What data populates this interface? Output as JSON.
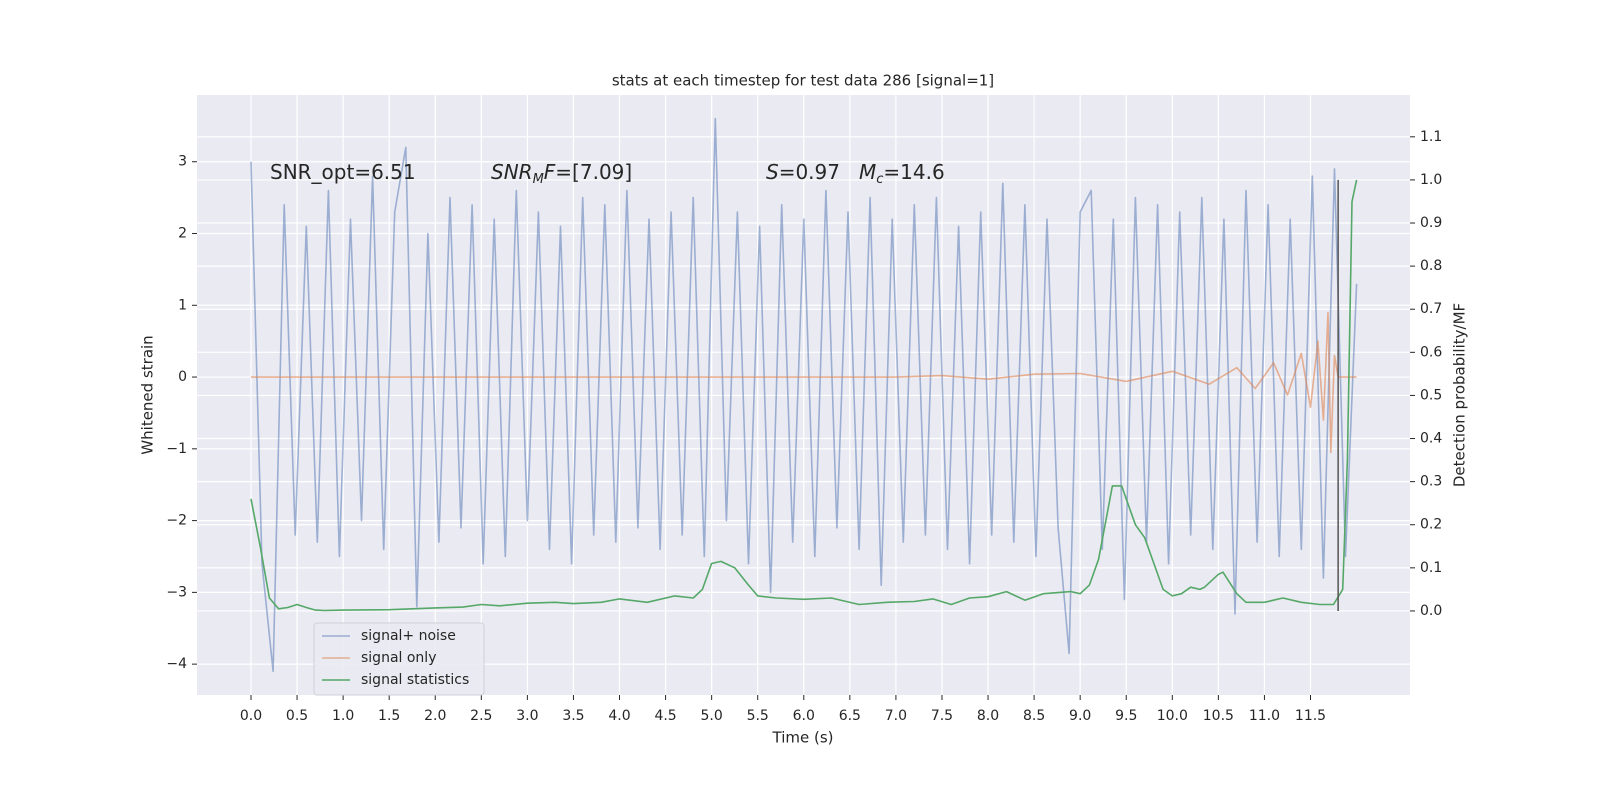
{
  "chart_data": {
    "type": "line",
    "title": "stats at each timestep for test data 286 [signal=1]",
    "xlabel": "Time (s)",
    "ylabel": "Whitened strain",
    "y2label": "Detection probability/MF",
    "xlim": [
      -0.586,
      12.58
    ],
    "ylim": [
      -4.43,
      3.93
    ],
    "y2lim": [
      -0.195,
      1.197
    ],
    "xticks": [
      {
        "value": 0,
        "label": "0.0"
      },
      {
        "value": 0.5,
        "label": "0.5"
      },
      {
        "value": 1,
        "label": "1.0"
      },
      {
        "value": 1.5,
        "label": "1.5"
      },
      {
        "value": 2,
        "label": "2.0"
      },
      {
        "value": 2.5,
        "label": "2.5"
      },
      {
        "value": 3,
        "label": "3.0"
      },
      {
        "value": 3.5,
        "label": "3.5"
      },
      {
        "value": 4,
        "label": "4.0"
      },
      {
        "value": 4.5,
        "label": "4.5"
      },
      {
        "value": 5,
        "label": "5.0"
      },
      {
        "value": 5.5,
        "label": "5.5"
      },
      {
        "value": 6,
        "label": "6.0"
      },
      {
        "value": 6.5,
        "label": "6.5"
      },
      {
        "value": 7,
        "label": "7.0"
      },
      {
        "value": 7.5,
        "label": "7.5"
      },
      {
        "value": 8,
        "label": "8.0"
      },
      {
        "value": 8.5,
        "label": "8.5"
      },
      {
        "value": 9,
        "label": "9.0"
      },
      {
        "value": 9.5,
        "label": "9.5"
      },
      {
        "value": 10,
        "label": "10.0"
      },
      {
        "value": 10.5,
        "label": "10.5"
      },
      {
        "value": 11,
        "label": "11.0"
      },
      {
        "value": 11.5,
        "label": "11.5"
      }
    ],
    "yticks": [
      {
        "value": -4,
        "label": "−4"
      },
      {
        "value": -3,
        "label": "−3"
      },
      {
        "value": -2,
        "label": "−2"
      },
      {
        "value": -1,
        "label": "−1"
      },
      0,
      1,
      2,
      3
    ],
    "y2ticks": [
      {
        "value": 0,
        "label": "0.0"
      },
      {
        "value": 0.1,
        "label": "0.1"
      },
      {
        "value": 0.2,
        "label": "0.2"
      },
      {
        "value": 0.3,
        "label": "0.3"
      },
      {
        "value": 0.4,
        "label": "0.4"
      },
      {
        "value": 0.5,
        "label": "0.5"
      },
      {
        "value": 0.6,
        "label": "0.6"
      },
      {
        "value": 0.7,
        "label": "0.7"
      },
      {
        "value": 0.8,
        "label": "0.8"
      },
      {
        "value": 0.9,
        "label": "0.9"
      },
      {
        "value": 1,
        "label": "1.0"
      },
      {
        "value": 1.1,
        "label": "1.1"
      }
    ],
    "grid": true,
    "legend": "lower left",
    "series": [
      {
        "name": "signal+ noise",
        "color": "#4c72b0",
        "opacity": 0.5,
        "x": [
          0,
          0.12,
          0.24,
          0.36,
          0.48,
          0.6,
          0.72,
          0.84,
          0.96,
          1.08,
          1.2,
          1.32,
          1.44,
          1.56,
          1.68,
          1.8,
          1.92,
          2.04,
          2.16,
          2.28,
          2.4,
          2.52,
          2.64,
          2.76,
          2.88,
          3.0,
          3.12,
          3.24,
          3.36,
          3.48,
          3.6,
          3.72,
          3.84,
          3.96,
          4.08,
          4.2,
          4.32,
          4.44,
          4.56,
          4.68,
          4.8,
          4.92,
          5.04,
          5.16,
          5.28,
          5.4,
          5.52,
          5.64,
          5.76,
          5.88,
          6.0,
          6.12,
          6.24,
          6.36,
          6.48,
          6.6,
          6.72,
          6.84,
          6.96,
          7.08,
          7.2,
          7.32,
          7.44,
          7.56,
          7.68,
          7.8,
          7.92,
          8.04,
          8.16,
          8.28,
          8.4,
          8.52,
          8.64,
          8.76,
          8.88,
          9.0,
          9.12,
          9.24,
          9.36,
          9.48,
          9.6,
          9.72,
          9.84,
          9.96,
          10.08,
          10.2,
          10.32,
          10.44,
          10.56,
          10.68,
          10.8,
          10.92,
          11.04,
          11.16,
          11.28,
          11.4,
          11.52,
          11.64,
          11.76,
          11.88,
          12.0
        ],
        "values": [
          3.0,
          -2.6,
          -4.1,
          2.4,
          -2.2,
          2.1,
          -2.3,
          2.6,
          -2.5,
          2.2,
          -2.0,
          2.8,
          -2.4,
          2.3,
          3.2,
          -3.2,
          2.0,
          -2.3,
          2.5,
          -2.1,
          2.4,
          -2.6,
          2.2,
          -2.5,
          2.6,
          -2.0,
          2.3,
          -2.4,
          2.1,
          -2.6,
          2.5,
          -2.2,
          2.4,
          -2.3,
          2.6,
          -2.1,
          2.2,
          -2.4,
          2.3,
          -2.2,
          2.5,
          -2.5,
          3.6,
          -2.0,
          2.3,
          -2.6,
          2.1,
          -3.0,
          2.4,
          -2.3,
          2.2,
          -2.5,
          2.6,
          -2.1,
          2.3,
          -2.4,
          2.5,
          -2.9,
          2.2,
          -2.3,
          2.4,
          -2.2,
          2.5,
          -2.4,
          2.1,
          -2.6,
          2.3,
          -2.2,
          2.7,
          -2.3,
          2.4,
          -2.5,
          2.2,
          -2.1,
          -3.85,
          2.3,
          2.6,
          -2.4,
          2.2,
          -3.1,
          2.5,
          -2.3,
          2.4,
          -2.6,
          2.3,
          -2.2,
          2.5,
          -2.4,
          2.2,
          -3.3,
          2.6,
          -2.3,
          2.4,
          -2.5,
          2.2,
          -2.4,
          2.8,
          -2.8,
          2.9,
          -2.5,
          1.3
        ]
      },
      {
        "name": "signal only",
        "color": "#dd8452",
        "opacity": 0.6,
        "x": [
          0,
          7.0,
          7.5,
          8.0,
          8.5,
          9.0,
          9.5,
          10.0,
          10.4,
          10.7,
          10.9,
          11.1,
          11.25,
          11.4,
          11.5,
          11.58,
          11.64,
          11.69,
          11.72,
          11.76,
          11.8,
          12.0
        ],
        "values": [
          0,
          0,
          0.02,
          -0.03,
          0.04,
          0.05,
          -0.06,
          0.08,
          -0.1,
          0.13,
          -0.16,
          0.2,
          -0.25,
          0.33,
          -0.42,
          0.5,
          -0.6,
          0.9,
          -1.05,
          0.3,
          0,
          0
        ]
      },
      {
        "name": "signal statistics",
        "color": "#55a868",
        "opacity": 1,
        "axis": "y2",
        "x": [
          0,
          0.1,
          0.2,
          0.3,
          0.4,
          0.5,
          0.6,
          0.7,
          0.8,
          1.0,
          1.5,
          2.0,
          2.3,
          2.5,
          2.7,
          3.0,
          3.3,
          3.5,
          3.8,
          4.0,
          4.3,
          4.6,
          4.8,
          4.9,
          5.0,
          5.1,
          5.25,
          5.4,
          5.5,
          5.7,
          6.0,
          6.3,
          6.6,
          6.9,
          7.2,
          7.4,
          7.6,
          7.8,
          8.0,
          8.2,
          8.4,
          8.6,
          8.9,
          9.0,
          9.1,
          9.2,
          9.35,
          9.45,
          9.6,
          9.7,
          9.8,
          9.9,
          10.0,
          10.1,
          10.2,
          10.3,
          10.35,
          10.5,
          10.55,
          10.7,
          10.8,
          11.0,
          11.2,
          11.4,
          11.6,
          11.75,
          11.85,
          11.9,
          11.95,
          12.0
        ],
        "values": [
          0.26,
          0.15,
          0.03,
          0.005,
          0.008,
          0.015,
          0.008,
          0.002,
          0.001,
          0.002,
          0.003,
          0.007,
          0.009,
          0.015,
          0.012,
          0.018,
          0.02,
          0.017,
          0.02,
          0.028,
          0.02,
          0.035,
          0.03,
          0.05,
          0.11,
          0.115,
          0.1,
          0.06,
          0.035,
          0.03,
          0.027,
          0.03,
          0.015,
          0.02,
          0.022,
          0.028,
          0.015,
          0.03,
          0.033,
          0.045,
          0.025,
          0.04,
          0.045,
          0.04,
          0.06,
          0.12,
          0.29,
          0.29,
          0.2,
          0.17,
          0.11,
          0.05,
          0.035,
          0.04,
          0.055,
          0.05,
          0.055,
          0.085,
          0.09,
          0.04,
          0.02,
          0.02,
          0.03,
          0.02,
          0.015,
          0.015,
          0.05,
          0.35,
          0.95,
          1.0
        ]
      }
    ],
    "vlines": [
      {
        "x": 11.8,
        "ymin": 0,
        "ymax": 1.0,
        "axis": "y2",
        "color": "#555555"
      }
    ],
    "annotations": [
      {
        "parts": [
          {
            "text": "SNR_opt=6.51"
          }
        ]
      },
      {
        "parts": [
          {
            "text": "SNR",
            "italic": true
          },
          {
            "text": "M",
            "italic": true,
            "sub": true
          },
          {
            "text": "F",
            "italic": true
          },
          {
            "text": "=[7.09]"
          }
        ]
      },
      {
        "parts": [
          {
            "text": "S",
            "italic": true
          },
          {
            "text": "=0.97"
          }
        ]
      },
      {
        "parts": [
          {
            "text": "M",
            "italic": true
          },
          {
            "text": "c",
            "italic": true,
            "sub": true
          },
          {
            "text": "=14.6"
          }
        ]
      }
    ]
  }
}
